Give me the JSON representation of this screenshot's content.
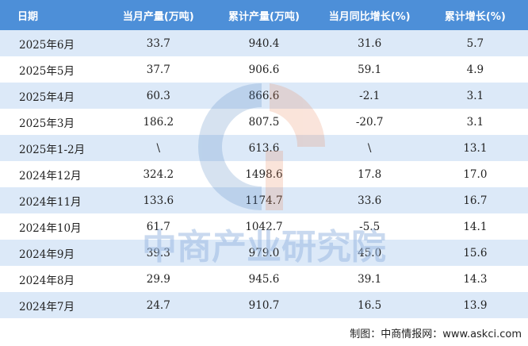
{
  "table": {
    "header": [
      "日期",
      "当月产量(万吨)",
      "累计产量(万吨)",
      "当月同比增长(%)",
      "累计增长(%)"
    ],
    "rows": [
      [
        "2025年6月",
        "33.7",
        "940.4",
        "31.6",
        "5.7"
      ],
      [
        "2025年5月",
        "37.7",
        "906.6",
        "59.1",
        "4.9"
      ],
      [
        "2025年4月",
        "60.3",
        "866.6",
        "-2.1",
        "3.1"
      ],
      [
        "2025年3月",
        "186.2",
        "807.5",
        "-20.7",
        "3.1"
      ],
      [
        "2025年1-2月",
        "\\",
        "613.6",
        "\\",
        "13.1"
      ],
      [
        "2024年12月",
        "324.2",
        "1498.6",
        "17.8",
        "17.0"
      ],
      [
        "2024年11月",
        "133.6",
        "1174.7",
        "33.6",
        "16.7"
      ],
      [
        "2024年10月",
        "61.7",
        "1042.7",
        "-5.5",
        "14.1"
      ],
      [
        "2024年9月",
        "39.3",
        "979.0",
        "45.0",
        "15.6"
      ],
      [
        "2024年8月",
        "29.9",
        "945.6",
        "39.1",
        "14.3"
      ],
      [
        "2024年7月",
        "24.7",
        "910.7",
        "16.5",
        "13.9"
      ]
    ]
  },
  "watermark": "中商产业研究院",
  "source": "制图：中商情报网：www.askci.com"
}
